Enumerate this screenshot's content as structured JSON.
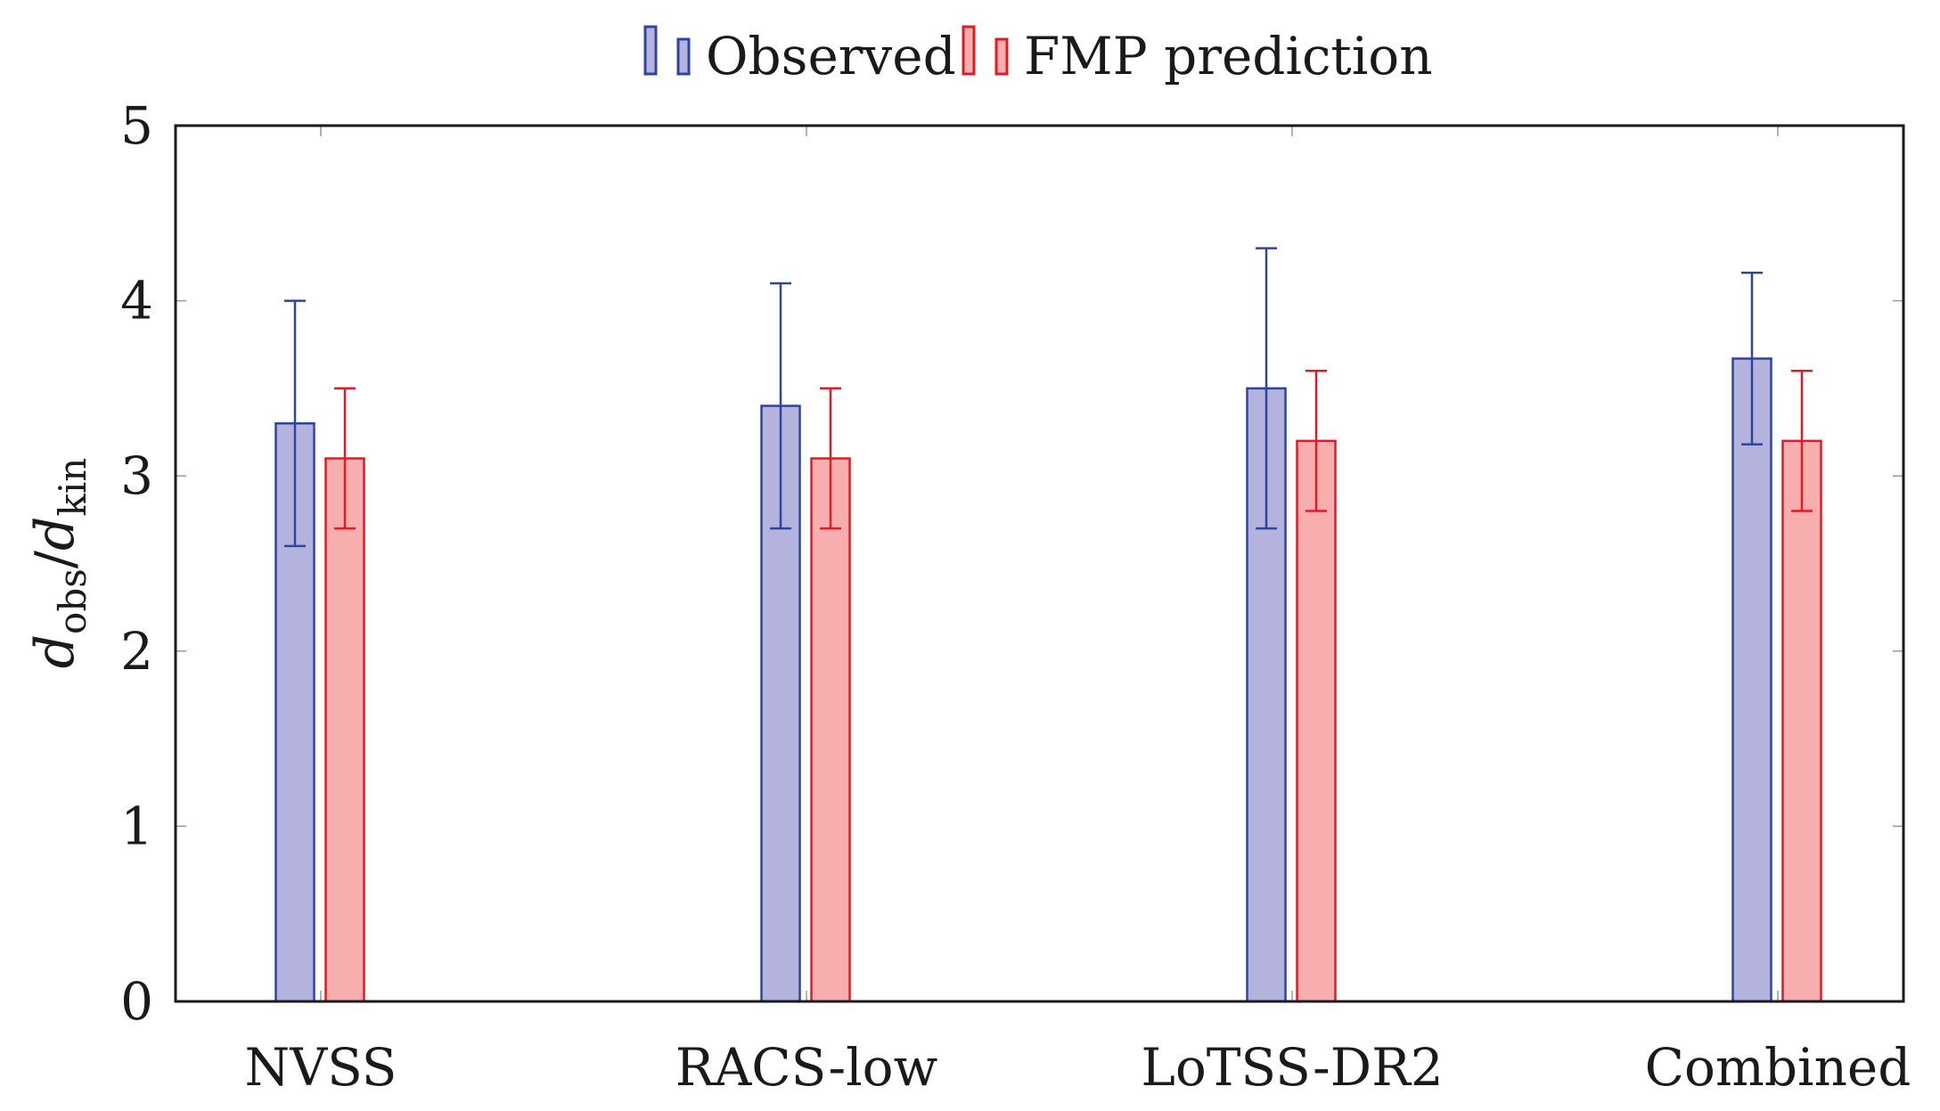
{
  "chart_data": {
    "type": "bar",
    "title": "",
    "xlabel": "",
    "ylabel": {
      "main": "d",
      "sub1": "obs",
      "sep": "/",
      "main2": "d",
      "sub2": "kin"
    },
    "categories": [
      "NVSS",
      "RACS-low",
      "LoTSS-DR2",
      "Combined"
    ],
    "ylim": [
      0,
      5
    ],
    "yticks": [
      "0",
      "1",
      "2",
      "3",
      "4",
      "5"
    ],
    "legend_position": "top-center",
    "series": [
      {
        "name": "Observed",
        "fill": "#b3b3de",
        "stroke": "#2e45a0",
        "values": [
          3.3,
          3.4,
          3.5,
          3.67
        ],
        "err_low": [
          2.6,
          2.7,
          2.7,
          3.18
        ],
        "err_high": [
          4.0,
          4.1,
          4.3,
          4.16
        ]
      },
      {
        "name": "FMP prediction",
        "fill": "#f8aeae",
        "stroke": "#e01b24",
        "values": [
          3.1,
          3.1,
          3.2,
          3.2
        ],
        "err_low": [
          2.7,
          2.7,
          2.8,
          2.8
        ],
        "err_high": [
          3.5,
          3.5,
          3.6,
          3.6
        ]
      }
    ]
  }
}
